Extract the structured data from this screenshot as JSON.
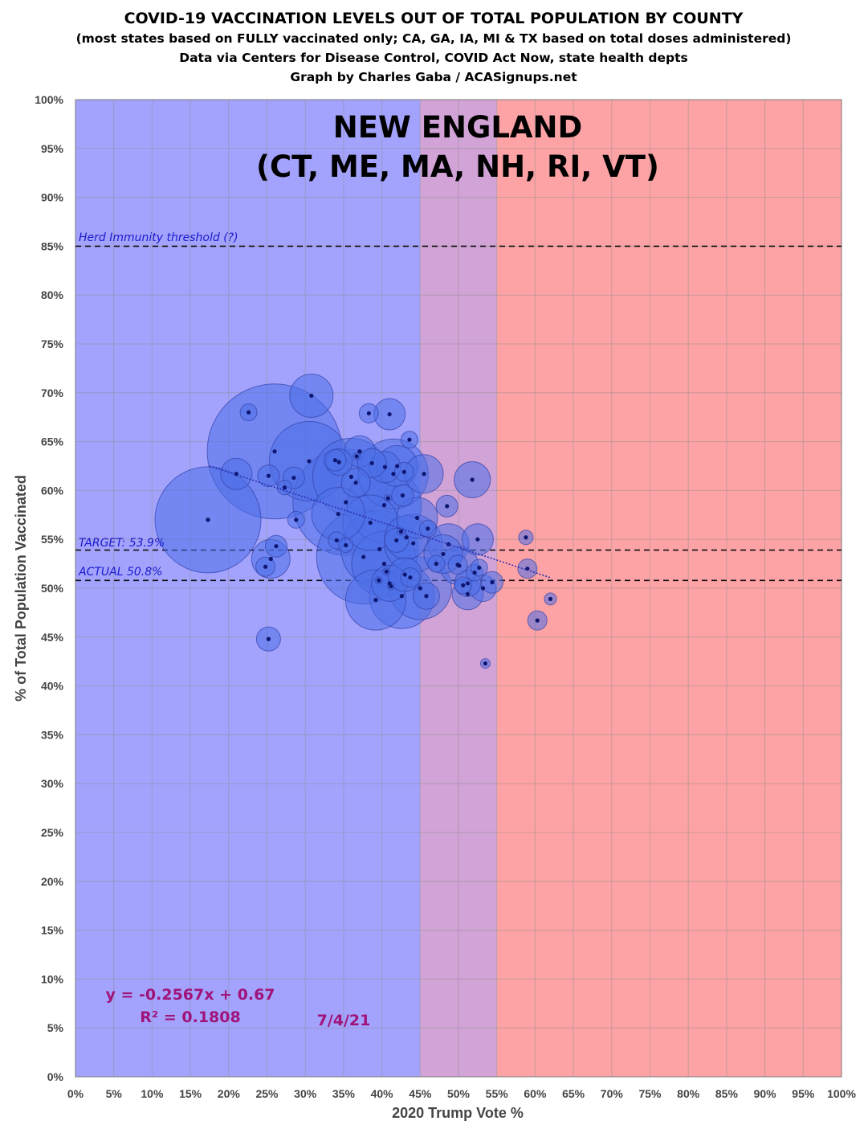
{
  "chart_data": {
    "type": "scatter",
    "title": "COVID-19 VACCINATION LEVELS OUT OF TOTAL POPULATION BY COUNTY",
    "subtitles": [
      "(most states based on FULLY vaccinated only; CA, GA, IA, MI & TX based on total doses administered)",
      "Data via Centers for Disease Control, COVID Act Now, state health depts",
      "Graph by Charles Gaba / ACASignups.net"
    ],
    "region_title": [
      "NEW ENGLAND",
      "(CT, ME, MA, NH, RI, VT)"
    ],
    "xlabel": "2020 Trump Vote %",
    "ylabel": "% of Total Population Vaccinated",
    "xlim": [
      0,
      100
    ],
    "ylim": [
      0,
      100
    ],
    "grid": true,
    "x_tick_labels": [
      "0%",
      "5%",
      "10%",
      "15%",
      "20%",
      "25%",
      "30%",
      "35%",
      "40%",
      "45%",
      "50%",
      "55%",
      "60%",
      "65%",
      "70%",
      "75%",
      "80%",
      "85%",
      "90%",
      "95%",
      "100%"
    ],
    "y_tick_labels": [
      "0%",
      "5%",
      "10%",
      "15%",
      "20%",
      "25%",
      "30%",
      "35%",
      "40%",
      "45%",
      "50%",
      "55%",
      "60%",
      "65%",
      "70%",
      "75%",
      "80%",
      "85%",
      "90%",
      "95%",
      "100%"
    ],
    "bands": [
      {
        "name": "dem",
        "from": 0,
        "to": 45,
        "color": "#a3a3fd"
      },
      {
        "name": "swing",
        "from": 45,
        "to": 55,
        "color": "#d1a3d6"
      },
      {
        "name": "gop",
        "from": 55,
        "to": 100,
        "color": "#fda3a5"
      }
    ],
    "reference_lines": [
      {
        "label": "Herd Immunity threshold (?)",
        "y": 85
      },
      {
        "label": "TARGET: 53.9%",
        "y": 53.9
      },
      {
        "label": "ACTUAL 50.8%",
        "y": 50.8
      }
    ],
    "trendline": {
      "slope": -0.2567,
      "intercept": 0.67,
      "x_range": [
        17.5,
        62
      ],
      "equation": "y = -0.2567x + 0.67",
      "r_squared": "R² = 0.1808"
    },
    "date_label": "7/4/21",
    "points": [
      {
        "x": 26.0,
        "y": 64.0,
        "r": 5.6
      },
      {
        "x": 17.3,
        "y": 57.0,
        "r": 4.4
      },
      {
        "x": 35.3,
        "y": 58.8,
        "r": 4.4
      },
      {
        "x": 37.6,
        "y": 53.2,
        "r": 3.9
      },
      {
        "x": 30.5,
        "y": 63.0,
        "r": 3.3
      },
      {
        "x": 36.0,
        "y": 61.4,
        "r": 3.2
      },
      {
        "x": 39.7,
        "y": 54.0,
        "r": 3.2
      },
      {
        "x": 40.3,
        "y": 58.5,
        "r": 3.1
      },
      {
        "x": 41.5,
        "y": 61.7,
        "r": 2.9
      },
      {
        "x": 40.3,
        "y": 52.5,
        "r": 2.7
      },
      {
        "x": 42.6,
        "y": 49.2,
        "r": 2.7
      },
      {
        "x": 45.0,
        "y": 50.0,
        "r": 2.6
      },
      {
        "x": 39.2,
        "y": 48.8,
        "r": 2.5
      },
      {
        "x": 44.1,
        "y": 54.6,
        "r": 2.4
      },
      {
        "x": 38.5,
        "y": 56.7,
        "r": 2.3
      },
      {
        "x": 34.3,
        "y": 57.6,
        "r": 2.2
      },
      {
        "x": 30.8,
        "y": 69.7,
        "r": 1.8
      },
      {
        "x": 43.2,
        "y": 55.2,
        "r": 1.8
      },
      {
        "x": 44.6,
        "y": 57.2,
        "r": 1.7
      },
      {
        "x": 42.0,
        "y": 62.5,
        "r": 1.7
      },
      {
        "x": 48.7,
        "y": 54.5,
        "r": 1.7
      },
      {
        "x": 45.5,
        "y": 61.7,
        "r": 1.6
      },
      {
        "x": 50.1,
        "y": 52.3,
        "r": 1.6
      },
      {
        "x": 48.0,
        "y": 53.5,
        "r": 1.6
      },
      {
        "x": 25.5,
        "y": 53.0,
        "r": 1.6
      },
      {
        "x": 41.0,
        "y": 50.5,
        "r": 1.5
      },
      {
        "x": 51.8,
        "y": 61.1,
        "r": 1.5
      },
      {
        "x": 43.0,
        "y": 51.4,
        "r": 1.4
      },
      {
        "x": 41.0,
        "y": 67.8,
        "r": 1.3
      },
      {
        "x": 21.0,
        "y": 61.7,
        "r": 1.3
      },
      {
        "x": 40.4,
        "y": 62.4,
        "r": 1.3
      },
      {
        "x": 37.1,
        "y": 64.0,
        "r": 1.3
      },
      {
        "x": 51.2,
        "y": 49.4,
        "r": 1.3
      },
      {
        "x": 52.5,
        "y": 55.0,
        "r": 1.3
      },
      {
        "x": 38.7,
        "y": 62.8,
        "r": 1.2
      },
      {
        "x": 36.6,
        "y": 60.8,
        "r": 1.2
      },
      {
        "x": 34.4,
        "y": 62.9,
        "r": 1.1
      },
      {
        "x": 53.2,
        "y": 50.0,
        "r": 1.1
      },
      {
        "x": 45.8,
        "y": 49.2,
        "r": 1.1
      },
      {
        "x": 51.2,
        "y": 50.5,
        "r": 1.1
      },
      {
        "x": 41.9,
        "y": 54.9,
        "r": 1.0
      },
      {
        "x": 25.2,
        "y": 44.8,
        "r": 1.0
      },
      {
        "x": 25.2,
        "y": 61.5,
        "r": 0.9
      },
      {
        "x": 54.4,
        "y": 50.6,
        "r": 0.9
      },
      {
        "x": 26.2,
        "y": 54.3,
        "r": 0.9
      },
      {
        "x": 42.7,
        "y": 59.5,
        "r": 0.9
      },
      {
        "x": 48.5,
        "y": 58.4,
        "r": 0.9
      },
      {
        "x": 33.9,
        "y": 63.1,
        "r": 0.9
      },
      {
        "x": 28.5,
        "y": 61.3,
        "r": 0.9
      },
      {
        "x": 59.0,
        "y": 52.0,
        "r": 0.8
      },
      {
        "x": 60.3,
        "y": 46.7,
        "r": 0.8
      },
      {
        "x": 38.3,
        "y": 67.9,
        "r": 0.8
      },
      {
        "x": 43.7,
        "y": 51.1,
        "r": 0.8
      },
      {
        "x": 49.9,
        "y": 52.4,
        "r": 0.8
      },
      {
        "x": 24.8,
        "y": 52.2,
        "r": 0.8
      },
      {
        "x": 42.9,
        "y": 61.9,
        "r": 0.8
      },
      {
        "x": 50.6,
        "y": 50.3,
        "r": 0.7
      },
      {
        "x": 22.6,
        "y": 68.0,
        "r": 0.7
      },
      {
        "x": 28.8,
        "y": 57.0,
        "r": 0.7
      },
      {
        "x": 47.1,
        "y": 52.5,
        "r": 0.7
      },
      {
        "x": 34.1,
        "y": 54.9,
        "r": 0.7
      },
      {
        "x": 46.0,
        "y": 56.1,
        "r": 0.7
      },
      {
        "x": 52.1,
        "y": 51.6,
        "r": 0.7
      },
      {
        "x": 52.7,
        "y": 52.1,
        "r": 0.7
      },
      {
        "x": 43.6,
        "y": 65.2,
        "r": 0.7
      },
      {
        "x": 35.3,
        "y": 54.4,
        "r": 0.6
      },
      {
        "x": 27.3,
        "y": 60.3,
        "r": 0.6
      },
      {
        "x": 58.8,
        "y": 55.2,
        "r": 0.6
      },
      {
        "x": 62.0,
        "y": 48.9,
        "r": 0.5
      },
      {
        "x": 53.5,
        "y": 42.3,
        "r": 0.4
      },
      {
        "x": 40.8,
        "y": 59.2,
        "r": 0.3
      },
      {
        "x": 42.5,
        "y": 55.8,
        "r": 0.3
      },
      {
        "x": 39.6,
        "y": 50.8,
        "r": 0.3
      },
      {
        "x": 40.6,
        "y": 51.7,
        "r": 0.3
      },
      {
        "x": 41.2,
        "y": 50.2,
        "r": 0.3
      },
      {
        "x": 36.7,
        "y": 63.5,
        "r": 0.3
      }
    ]
  }
}
